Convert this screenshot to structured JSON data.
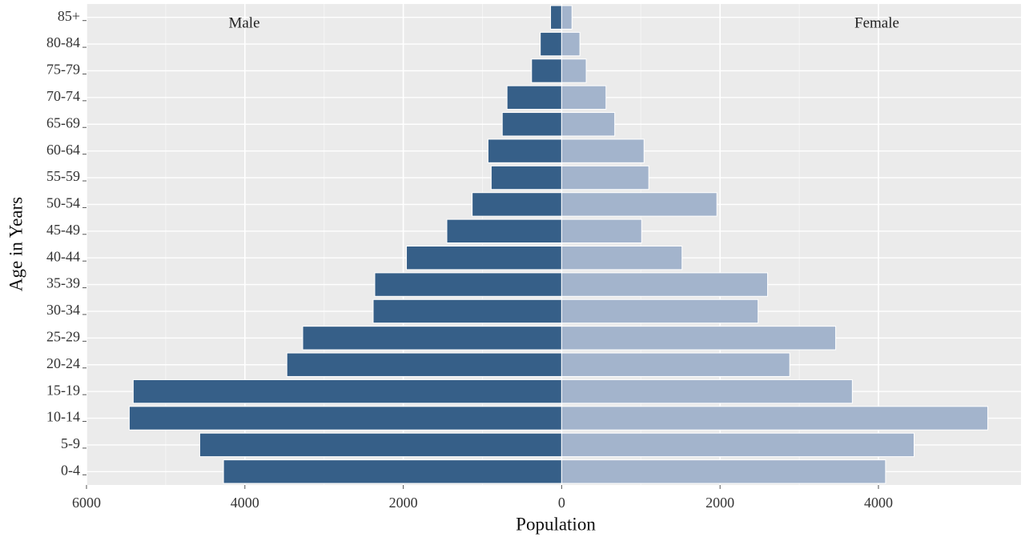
{
  "chart_data": {
    "type": "population-pyramid",
    "x_label": "Population",
    "y_label": "Age in Years",
    "categories": [
      "0-4",
      "5-9",
      "10-14",
      "15-19",
      "20-24",
      "25-29",
      "30-34",
      "35-39",
      "40-44",
      "45-49",
      "50-54",
      "55-59",
      "60-64",
      "65-69",
      "70-74",
      "75-79",
      "80-84",
      "85+"
    ],
    "series": [
      {
        "name": "Male",
        "color": "#365f88",
        "values": [
          -4270,
          -4570,
          -5460,
          -5410,
          -3470,
          -3270,
          -2380,
          -2360,
          -1960,
          -1450,
          -1130,
          -890,
          -930,
          -750,
          -690,
          -380,
          -270,
          -140
        ]
      },
      {
        "name": "Female",
        "color": "#a3b4cc",
        "values": [
          4090,
          4450,
          5380,
          3670,
          2880,
          3460,
          2480,
          2600,
          1520,
          1010,
          1960,
          1100,
          1040,
          670,
          560,
          310,
          230,
          130
        ]
      }
    ],
    "xlim": [
      -6000,
      5800
    ],
    "xticks": [
      {
        "value": -6000,
        "label": "6000"
      },
      {
        "value": -4000,
        "label": "4000"
      },
      {
        "value": -2000,
        "label": "2000"
      },
      0,
      2000,
      4000
    ],
    "grid": true
  }
}
